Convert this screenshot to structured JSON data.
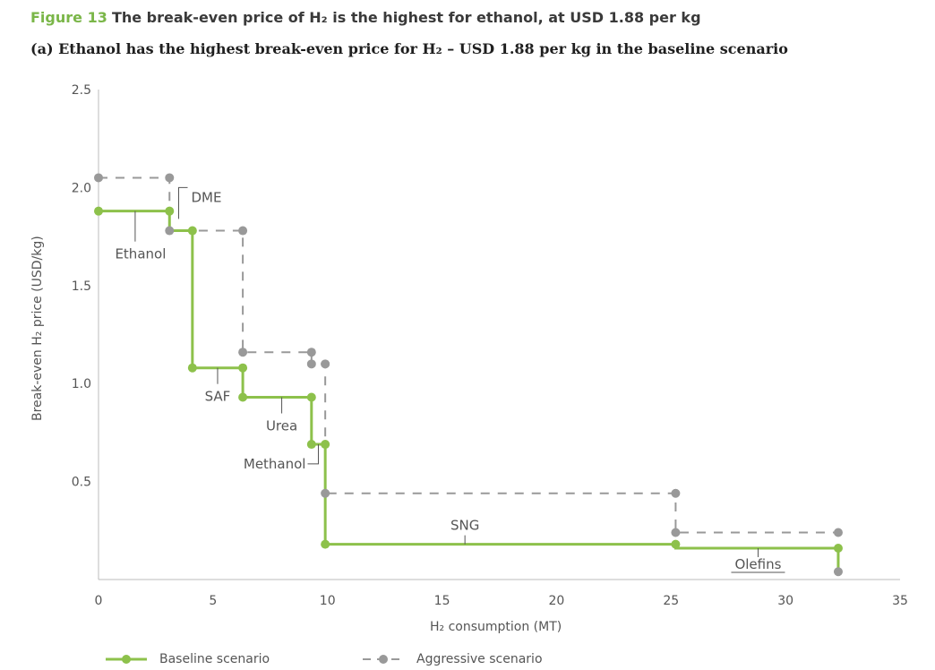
{
  "figure": {
    "number": "Figure 13",
    "title": "The break-even price of H₂ is the highest for ethanol, at USD 1.88 per kg",
    "subtitle": "(a) Ethanol has the highest break-even price for H₂ – USD 1.88 per kg in the baseline scenario"
  },
  "colors": {
    "baseline": "#8dc14b",
    "aggressive": "#999999",
    "axis": "#bbbbbb",
    "text": "#555555"
  },
  "chart_data": {
    "type": "line",
    "step": true,
    "xlabel": "H₂ consumption (MT)",
    "ylabel": "Break-even H₂ price (USD/kg)",
    "xlim": [
      0,
      35
    ],
    "ylim": [
      0,
      2.5
    ],
    "xticks": [
      0,
      5,
      10,
      15,
      20,
      25,
      30,
      35
    ],
    "yticks": [
      0.5,
      1.0,
      1.5,
      2.0,
      2.5
    ],
    "xtick_labels": [
      "0",
      "5",
      "10",
      "15",
      "20",
      "25",
      "30",
      "35"
    ],
    "ytick_labels": [
      "0.5",
      "1.0",
      "1.5",
      "2.0",
      "2.5"
    ],
    "grid": false,
    "legend_position": "bottom",
    "series": [
      {
        "name": "Baseline scenario",
        "style": "solid",
        "points": [
          [
            0,
            1.88
          ],
          [
            3.1,
            1.88
          ],
          [
            3.1,
            1.78
          ],
          [
            4.1,
            1.78
          ],
          [
            4.1,
            1.08
          ],
          [
            6.3,
            1.08
          ],
          [
            6.3,
            0.93
          ],
          [
            9.3,
            0.93
          ],
          [
            9.3,
            0.69
          ],
          [
            9.9,
            0.69
          ],
          [
            9.9,
            0.18
          ],
          [
            25.2,
            0.18
          ],
          [
            25.2,
            0.16
          ],
          [
            32.3,
            0.16
          ],
          [
            32.3,
            0.04
          ]
        ]
      },
      {
        "name": "Aggressive scenario",
        "style": "dashed",
        "points": [
          [
            0,
            2.05
          ],
          [
            3.1,
            2.05
          ],
          [
            3.1,
            1.78
          ],
          [
            6.3,
            1.78
          ],
          [
            6.3,
            1.16
          ],
          [
            9.3,
            1.16
          ],
          [
            9.3,
            1.1
          ],
          [
            9.9,
            1.1
          ],
          [
            9.9,
            0.44
          ],
          [
            25.2,
            0.44
          ],
          [
            25.2,
            0.24
          ],
          [
            32.3,
            0.24
          ],
          [
            32.3,
            0.04
          ]
        ]
      }
    ],
    "markers": {
      "baseline": [
        [
          0,
          1.88
        ],
        [
          3.1,
          1.88
        ],
        [
          4.1,
          1.78
        ],
        [
          4.1,
          1.08
        ],
        [
          6.3,
          1.08
        ],
        [
          6.3,
          0.93
        ],
        [
          9.3,
          0.93
        ],
        [
          9.3,
          0.69
        ],
        [
          9.9,
          0.69
        ],
        [
          9.9,
          0.18
        ],
        [
          25.2,
          0.18
        ],
        [
          32.3,
          0.16
        ]
      ],
      "aggressive": [
        [
          0,
          2.05
        ],
        [
          3.1,
          2.05
        ],
        [
          3.1,
          1.78
        ],
        [
          6.3,
          1.78
        ],
        [
          6.3,
          1.16
        ],
        [
          9.3,
          1.16
        ],
        [
          9.3,
          1.1
        ],
        [
          9.9,
          1.1
        ],
        [
          9.9,
          0.44
        ],
        [
          25.2,
          0.44
        ],
        [
          25.2,
          0.24
        ],
        [
          32.3,
          0.24
        ],
        [
          32.3,
          0.04
        ]
      ]
    },
    "annotations": [
      {
        "text": "Ethanol",
        "x": 1.6,
        "y": 1.88,
        "label_y": 1.68
      },
      {
        "text": "DME",
        "x": 3.5,
        "y": 1.84,
        "label_y": 2.0
      },
      {
        "text": "SAF",
        "x": 5.2,
        "y": 1.08,
        "label_y": 1.0
      },
      {
        "text": "Urea",
        "x": 8.0,
        "y": 0.93,
        "label_y": 0.84
      },
      {
        "text": "Methanol",
        "x": 9.6,
        "y": 0.59,
        "label_y": 0.59
      },
      {
        "text": "SNG",
        "x": 16.0,
        "y": 0.18,
        "label_y": 0.27
      },
      {
        "text": "Olefins",
        "x": 28.8,
        "y": 0.16,
        "label_y": 0.07
      }
    ]
  }
}
